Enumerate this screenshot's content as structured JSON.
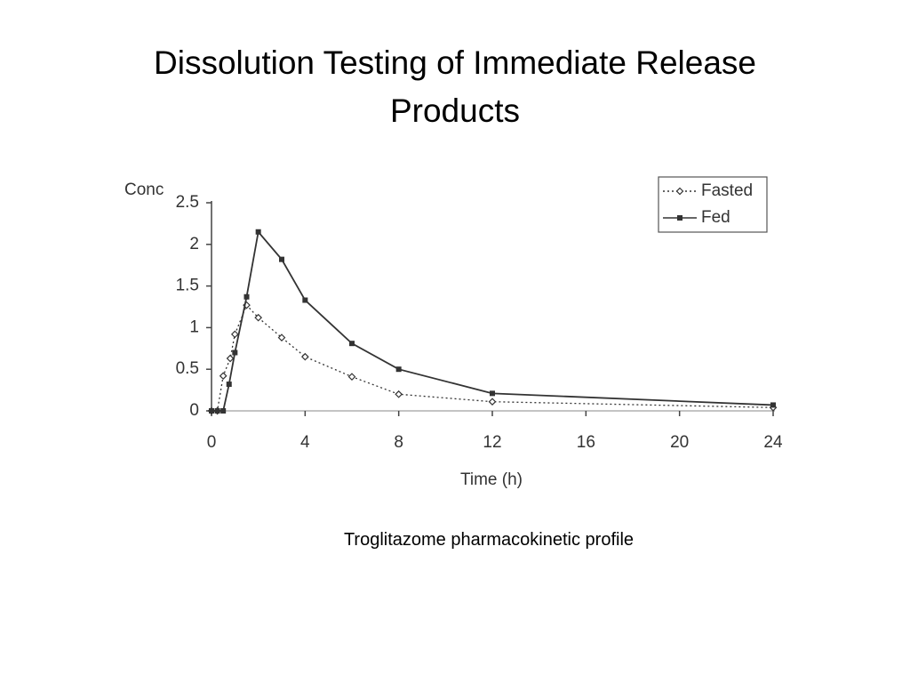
{
  "slide_title": "Dissolution Testing of Immediate Release Products",
  "caption": "Troglitazome pharmacokinetic profile",
  "chart_data": {
    "type": "line",
    "y_label": "Conc",
    "x_label": "Time (h)",
    "xlim": [
      0,
      24
    ],
    "xticks": [
      0,
      4,
      8,
      12,
      16,
      20,
      24
    ],
    "ylim": [
      0,
      2.5
    ],
    "yticks": [
      0,
      0.5,
      1,
      1.5,
      2,
      2.5
    ],
    "legend": "upper right",
    "series": [
      {
        "name": "Fasted",
        "color": "#333333",
        "style": "dotted",
        "marker": "open-diamond",
        "x": [
          0,
          0.25,
          0.5,
          0.8,
          1,
          1.5,
          2,
          3,
          4,
          6,
          8,
          12,
          24
        ],
        "values": [
          0,
          0,
          0.42,
          0.63,
          0.92,
          1.27,
          1.12,
          0.88,
          0.65,
          0.41,
          0.2,
          0.11,
          0.04
        ]
      },
      {
        "name": "Fed",
        "color": "#333333",
        "style": "solid",
        "marker": "filled-square",
        "x": [
          0,
          0.25,
          0.5,
          0.75,
          1,
          1.5,
          2,
          3,
          4,
          6,
          8,
          12,
          24
        ],
        "values": [
          0,
          0,
          0,
          0.32,
          0.7,
          1.37,
          2.15,
          1.82,
          1.33,
          0.81,
          0.5,
          0.21,
          0.07
        ]
      }
    ]
  }
}
